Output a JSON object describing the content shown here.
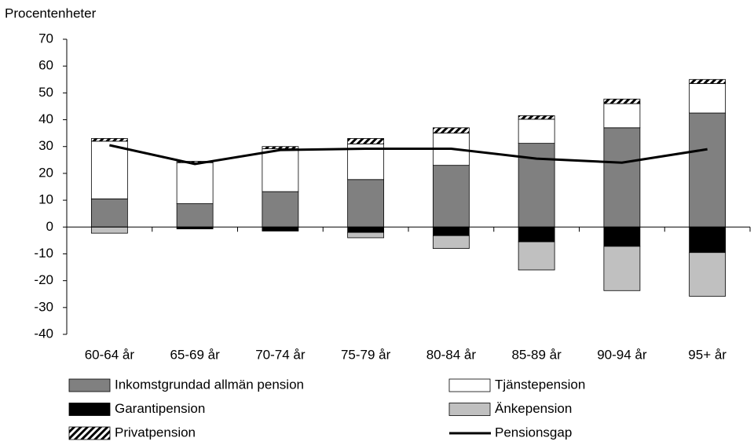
{
  "chart_data": {
    "type": "bar",
    "stacked": true,
    "y_label": "Procentenheter",
    "categories": [
      "60-64 år",
      "65-69 år",
      "70-74 år",
      "75-79 år",
      "80-84 år",
      "85-89 år",
      "90-94 år",
      "95+ år"
    ],
    "series": [
      {
        "name": "Inkomstgrundad allmän pension",
        "color": "#808080",
        "values": [
          10.5,
          8.7,
          13.2,
          17.7,
          23,
          31.2,
          37,
          42.5
        ]
      },
      {
        "name": "Tjänstepension",
        "color": "#ffffff",
        "values": [
          21.5,
          15.3,
          16,
          13.3,
          12,
          9,
          9,
          11
        ]
      },
      {
        "name": "Garantipension",
        "color": "#000000",
        "values": [
          0,
          -0.7,
          -1.5,
          -2,
          -3.2,
          -5.5,
          -7.2,
          -9.5
        ]
      },
      {
        "name": "Änkepension",
        "color": "#c0c0c0",
        "values": [
          -2.3,
          0,
          0,
          -2,
          -4.8,
          -10.5,
          -16.5,
          -16.3
        ]
      },
      {
        "name": "Privatpension",
        "color": "#000000",
        "pattern": "hatch",
        "values": [
          1,
          0.5,
          0.8,
          2,
          2,
          1.3,
          1.7,
          1.5
        ]
      },
      {
        "name": "Pensionsgap",
        "color": "#000000",
        "type": "line",
        "values": [
          30.5,
          23.5,
          28.7,
          29.2,
          29.2,
          25.5,
          24,
          29
        ]
      }
    ],
    "ylim": [
      -40,
      70
    ],
    "yticks": [
      -40,
      -30,
      -20,
      -10,
      0,
      10,
      20,
      30,
      40,
      50,
      60,
      70
    ],
    "grid": false
  }
}
